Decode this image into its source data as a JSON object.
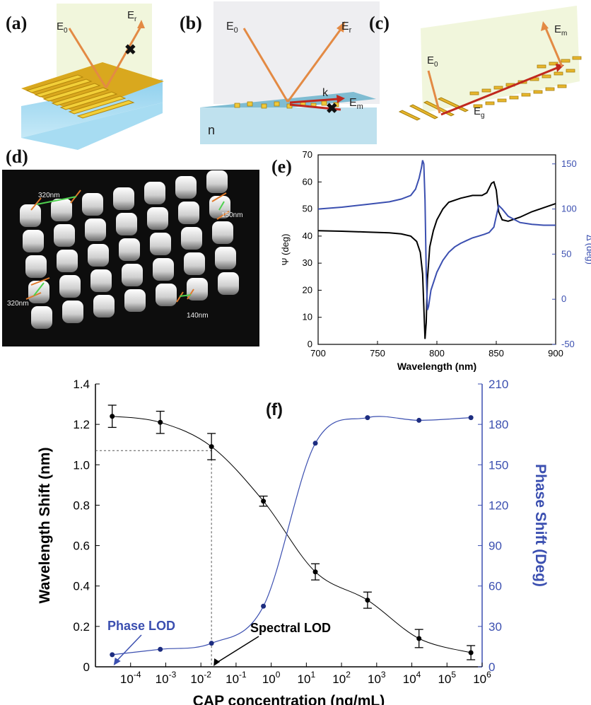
{
  "panel_labels": {
    "a": "(a)",
    "b": "(b)",
    "c": "(c)",
    "d": "(d)",
    "e": "(e)",
    "f": "(f)"
  },
  "schematic_a": {
    "e0": "E",
    "e0_sub": "0",
    "er": "E",
    "er_sub": "r"
  },
  "schematic_b": {
    "e0": "E",
    "e0_sub": "0",
    "er": "E",
    "er_sub": "r",
    "k": "k",
    "em": "E",
    "em_sub": "m",
    "n": "n"
  },
  "schematic_c": {
    "e0": "E",
    "e0_sub": "0",
    "em": "E",
    "em_sub": "m",
    "eg": "E",
    "eg_sub": "g"
  },
  "afm_image": {
    "labels": [
      "320nm",
      "150nm",
      "320nm",
      "140nm"
    ],
    "colors": {
      "background": "#0d0d0d",
      "pillar": "#e8e8e8",
      "marker": "#e07a2c",
      "span": "#4fd14f"
    }
  },
  "chart_data": [
    {
      "type": "line",
      "id": "e",
      "xlabel": "Wavelength (nm)",
      "ylabel": "Ψ (deg)",
      "y2label": "Δ (deg)",
      "xlim": [
        700,
        900
      ],
      "ylim": [
        0,
        70
      ],
      "y2lim": [
        -50,
        160
      ],
      "xticks": [
        700,
        750,
        800,
        850,
        900
      ],
      "yticks": [
        0,
        10,
        20,
        30,
        40,
        50,
        60,
        70
      ],
      "y2ticks": [
        -50,
        0,
        50,
        100,
        150
      ],
      "series": [
        {
          "axis": "left",
          "color": "#000000",
          "x": [
            700,
            720,
            740,
            760,
            770,
            778,
            783,
            786,
            788,
            789,
            790,
            791,
            792,
            794,
            797,
            800,
            805,
            810,
            820,
            830,
            838,
            842,
            846,
            848,
            850,
            852,
            855,
            860,
            870,
            880,
            890,
            900
          ],
          "y": [
            42,
            41.8,
            41.5,
            41.2,
            40.8,
            40,
            38,
            34,
            26,
            14,
            2,
            8,
            24,
            36,
            42,
            46,
            50,
            52.5,
            54,
            55,
            55,
            56,
            59.5,
            60,
            57,
            49,
            46,
            45.5,
            47,
            49,
            50.5,
            52
          ]
        },
        {
          "axis": "right",
          "color": "#3b4fb0",
          "x": [
            700,
            720,
            740,
            760,
            770,
            778,
            782,
            785,
            787,
            788,
            789,
            790,
            791,
            792,
            793,
            795,
            800,
            805,
            810,
            815,
            820,
            825,
            830,
            835,
            840,
            844,
            848,
            850,
            852,
            855,
            860,
            870,
            880,
            890,
            900
          ],
          "y": [
            100,
            102,
            105,
            108,
            111,
            115,
            122,
            134,
            146,
            154,
            150,
            110,
            30,
            -12,
            -8,
            10,
            30,
            43,
            52,
            58,
            62,
            65,
            68,
            70,
            72,
            74,
            80,
            92,
            104,
            100,
            92,
            85,
            83,
            82,
            82
          ]
        }
      ]
    },
    {
      "type": "line",
      "id": "f",
      "title": "(f)",
      "xlabel": "CAP concentration (ng/mL)",
      "ylabel": "Wavelength Shift (nm)",
      "y2label": "Phase Shift (Deg)",
      "xscale": "log",
      "xlim": [
        1e-05,
        1000000
      ],
      "ylim": [
        0,
        1.4
      ],
      "y2lim": [
        0,
        210
      ],
      "xticks": [
        0.0001,
        0.001,
        0.01,
        0.1,
        1,
        10,
        100,
        1000,
        10000,
        100000,
        1000000
      ],
      "xticklabels": [
        "10-4",
        "10-3",
        "10-2",
        "10-1",
        "100",
        "101",
        "102",
        "103",
        "104",
        "105",
        "106"
      ],
      "yticks": [
        0,
        0.2,
        0.4,
        0.6,
        0.8,
        1.0,
        1.2,
        1.4
      ],
      "yticklabels": [
        "0",
        "0.2",
        "0.4",
        "0.6",
        "0.8",
        "1.0",
        "1.2",
        "1.4"
      ],
      "y2ticks": [
        0,
        30,
        60,
        90,
        120,
        150,
        180,
        210
      ],
      "series": [
        {
          "axis": "left",
          "color": "#000000",
          "x": [
            3e-05,
            0.0007,
            0.02,
            0.6,
            18,
            550,
            16000,
            480000
          ],
          "y": [
            1.24,
            1.21,
            1.09,
            0.82,
            0.47,
            0.33,
            0.14,
            0.07
          ],
          "err": [
            0.055,
            0.055,
            0.065,
            0.025,
            0.04,
            0.04,
            0.045,
            0.035
          ]
        },
        {
          "axis": "right",
          "color": "#3b4fb0",
          "x": [
            3e-05,
            0.0007,
            0.02,
            0.6,
            18,
            550,
            16000,
            480000
          ],
          "y": [
            9,
            13,
            17.5,
            45,
            166,
            185,
            183,
            185
          ]
        }
      ],
      "annotations": [
        {
          "text": "Phase LOD",
          "color": "#3b4fb0"
        },
        {
          "text": "Spectral LOD",
          "color": "#000000"
        }
      ],
      "reference_lines": {
        "y": 1.07,
        "x": 0.02
      }
    }
  ]
}
